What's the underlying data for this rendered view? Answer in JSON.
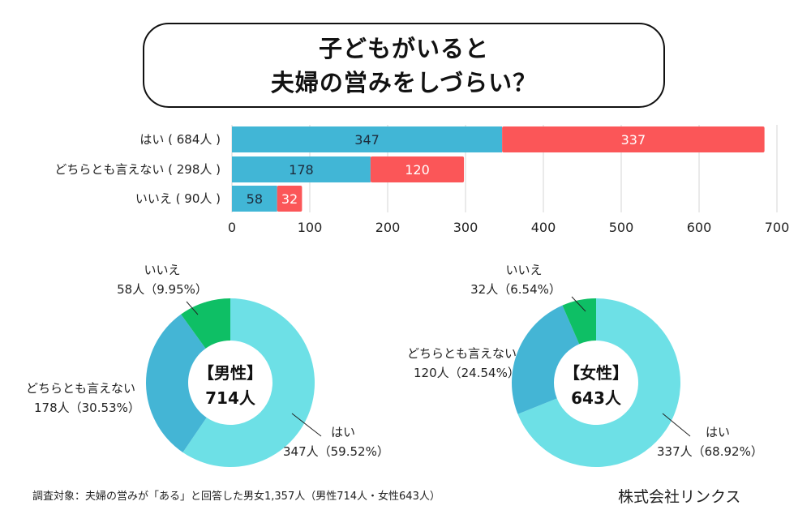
{
  "title": {
    "line1": "子どもがいると",
    "line2": "夫婦の営みをしづらい？"
  },
  "colors": {
    "male_bar": "#41b6d6",
    "female_bar": "#fb5658",
    "yes": "#6de0e6",
    "neutral": "#44b5d5",
    "no": "#0ebf65",
    "grid": "#d5d5d5"
  },
  "chart_data": [
    {
      "type": "bar",
      "orientation": "horizontal",
      "stacked": true,
      "categories": [
        "はい（684人）",
        "どちらとも言えない（298人）",
        "いいえ（90人）"
      ],
      "category_labels": [
        "はい ( 684人 )",
        "どちらとも言えない ( 298人 )",
        "いいえ ( 90人 )"
      ],
      "series": [
        {
          "name": "男性",
          "values": [
            347,
            178,
            58
          ]
        },
        {
          "name": "女性",
          "values": [
            337,
            120,
            32
          ]
        }
      ],
      "xlim": [
        0,
        700
      ],
      "xticks": [
        0,
        100,
        200,
        300,
        400,
        500,
        600,
        700
      ],
      "grid": true,
      "title": "",
      "xlabel": "",
      "ylabel": ""
    },
    {
      "type": "pie",
      "variant": "donut",
      "center_label": [
        "【男性】",
        "714人"
      ],
      "slices": [
        {
          "label": "はい",
          "count": 347,
          "count_label": "347人（59.52%）",
          "percent": 59.52
        },
        {
          "label": "どちらとも言えない",
          "count": 178,
          "count_label": "178人（30.53%）",
          "percent": 30.53
        },
        {
          "label": "いいえ",
          "count": 58,
          "count_label": "58人（9.95%）",
          "percent": 9.95
        }
      ]
    },
    {
      "type": "pie",
      "variant": "donut",
      "center_label": [
        "【女性】",
        "643人"
      ],
      "slices": [
        {
          "label": "はい",
          "count": 337,
          "count_label": "337人（68.92%）",
          "percent": 68.92
        },
        {
          "label": "どちらとも言えない",
          "count": 120,
          "count_label": "120人（24.54%）",
          "percent": 24.54
        },
        {
          "label": "いいえ",
          "count": 32,
          "count_label": "32人（6.54%）",
          "percent": 6.54
        }
      ]
    }
  ],
  "footer": {
    "note": "調査対象：夫婦の営みが「ある」と回答した男女1,357人（男性714人・女性643人）",
    "company": "株式会社リンクス"
  }
}
